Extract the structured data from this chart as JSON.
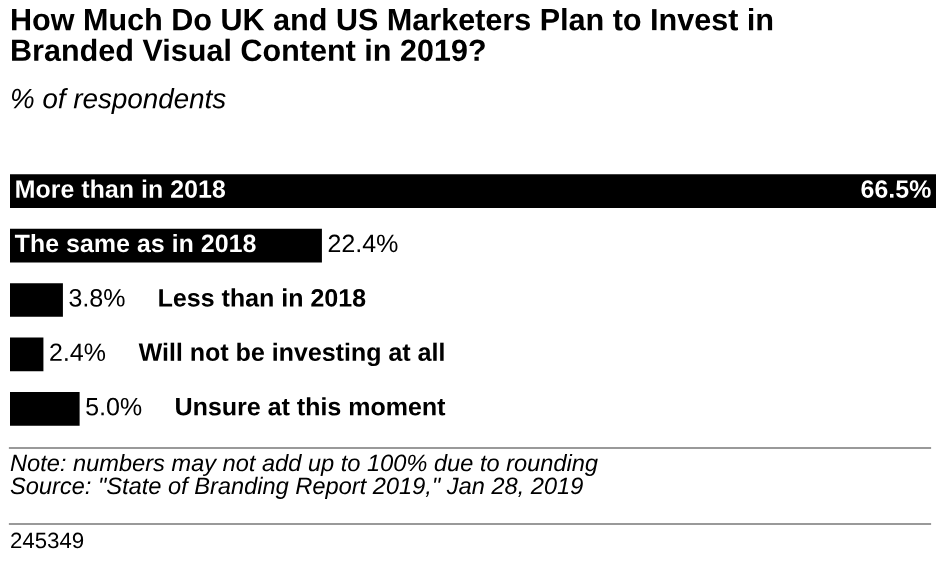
{
  "chart_data": {
    "type": "bar",
    "orientation": "horizontal",
    "title": "How Much Do UK and US Marketers Plan to Invest in\nBranded Visual Content in 2019?",
    "subtitle": "% of respondents",
    "categories": [
      "More than in 2018",
      "The same as in 2018",
      "Less than in 2018",
      "Will not be investing at all",
      "Unsure at this moment"
    ],
    "values": [
      66.5,
      22.4,
      3.8,
      2.4,
      5.0
    ],
    "value_labels": [
      "66.5%",
      "22.4%",
      "3.8%",
      "2.4%",
      "5.0%"
    ],
    "color": "#000000",
    "xlim": [
      0,
      66.5
    ],
    "tick_labels": false,
    "annotations": [
      "Note: numbers may not add up to 100% due to rounding\nSource: \"State of Branding Report 2019,\" Jan 28, 2019",
      "245349"
    ]
  }
}
